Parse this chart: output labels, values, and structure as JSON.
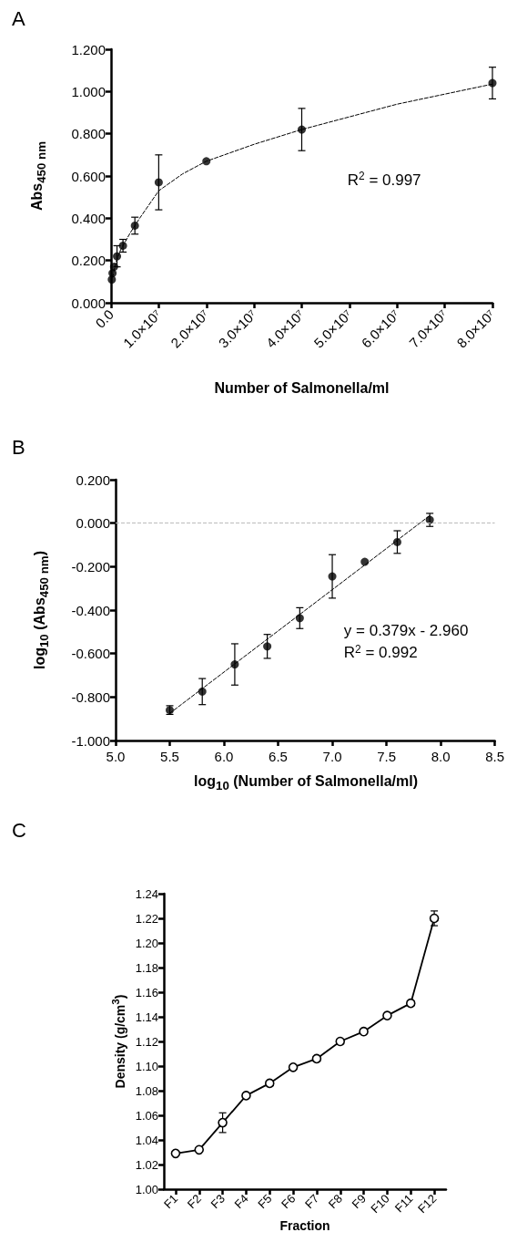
{
  "chart_data": [
    {
      "type": "scatter",
      "title": "A",
      "xlabel": "Number of Salmonella/ml",
      "ylabel": "Abs$_{450 nm}$",
      "xlim": [
        0,
        80000000
      ],
      "xticks": [
        {
          "value": 0,
          "label": "0.0"
        },
        {
          "value": 10000000,
          "label": "1.0×10⁷"
        },
        {
          "value": 20000000,
          "label": "2.0×10⁷"
        },
        {
          "value": 30000000,
          "label": "3.0×10⁷"
        },
        {
          "value": 40000000,
          "label": "4.0×10⁷"
        },
        {
          "value": 50000000,
          "label": "5.0×10⁷"
        },
        {
          "value": 60000000,
          "label": "6.0×10⁷"
        },
        {
          "value": 70000000,
          "label": "7.0×10⁷"
        },
        {
          "value": 80000000,
          "label": "8.0×10⁷"
        }
      ],
      "ylim": [
        0,
        1.2
      ],
      "yticks": [
        {
          "value": 0,
          "label": "0.000"
        },
        {
          "value": 0.2,
          "label": "0.200"
        },
        {
          "value": 0.4,
          "label": "0.400"
        },
        {
          "value": 0.6,
          "label": "0.600"
        },
        {
          "value": 0.8,
          "label": "0.800"
        },
        {
          "value": 1.0,
          "label": "1.000"
        },
        {
          "value": 1.2,
          "label": "1.200"
        }
      ],
      "grid": false,
      "marker": "circle",
      "annotations": [
        "R$^{2}$ = 0.997"
      ],
      "series": [
        {
          "color": "#000000",
          "x": [
            160000,
            310000,
            630000,
            1250000,
            2500000,
            5000000,
            10000000,
            20000000,
            40000000,
            80000000
          ],
          "values": [
            0.11,
            0.14,
            0.17,
            0.22,
            0.27,
            0.365,
            0.57,
            0.67,
            0.82,
            1.04
          ],
          "errors": [
            null,
            null,
            null,
            0.05,
            0.03,
            0.04,
            0.13,
            null,
            0.1,
            0.075
          ]
        },
        {
          "type": "line",
          "color": "#000000",
          "marker": "none",
          "line_style": "dashed",
          "x": [
            300000,
            1000000,
            2000000,
            4000000,
            6000000,
            10000000,
            15000000,
            20000000,
            30000000,
            40000000,
            60000000,
            80000000
          ],
          "values": [
            0.12,
            0.19,
            0.25,
            0.33,
            0.4,
            0.53,
            0.61,
            0.67,
            0.75,
            0.82,
            0.94,
            1.035
          ]
        }
      ]
    },
    {
      "type": "scatter",
      "title": "B",
      "xlabel": "log$_{10}$ (Number of Salmonella/ml)",
      "ylabel": "log$_{10}$ (Abs$_{450 nm}$)",
      "xlim": [
        5.0,
        8.5
      ],
      "xticks": [
        {
          "value": 5,
          "label": "5.0"
        },
        5.5,
        {
          "value": 6,
          "label": "6.0"
        },
        6.5,
        {
          "value": 7,
          "label": "7.0"
        },
        7.5,
        {
          "value": 8,
          "label": "8.0"
        },
        8.5
      ],
      "ylim": [
        -1.0,
        0.2
      ],
      "yticks": [
        {
          "value": -1,
          "label": "-1.000"
        },
        {
          "value": -0.8,
          "label": "-0.800"
        },
        {
          "value": -0.6,
          "label": "-0.600"
        },
        {
          "value": -0.4,
          "label": "-0.400"
        },
        {
          "value": -0.2,
          "label": "-0.200"
        },
        {
          "value": 0,
          "label": "0.000"
        },
        {
          "value": 0.2,
          "label": "0.200"
        }
      ],
      "grid": false,
      "marker": "circle",
      "ref_lines": [
        {
          "axis": "y",
          "value": 0,
          "color": "#bbbbbb",
          "line_style": "dashed"
        }
      ],
      "annotations": [
        "y = 0.379x - 2.960",
        "R$^{2}$ = 0.992"
      ],
      "series": [
        {
          "color": "#000000",
          "x": [
            5.5,
            5.8,
            6.1,
            6.4,
            6.7,
            7.0,
            7.3,
            7.6,
            7.9
          ],
          "values": [
            -0.86,
            -0.775,
            -0.65,
            -0.567,
            -0.437,
            -0.245,
            -0.178,
            -0.087,
            0.015
          ],
          "errors": [
            0.02,
            0.06,
            0.095,
            0.055,
            0.048,
            0.1,
            null,
            0.052,
            0.03
          ]
        },
        {
          "type": "line",
          "color": "#000000",
          "marker": "none",
          "line_style": "dashed",
          "x": [
            5.5,
            7.9
          ],
          "values": [
            -0.875,
            0.035
          ]
        }
      ]
    },
    {
      "type": "line",
      "title": "C",
      "xlabel": "Fraction",
      "ylabel": "Density (g/cm$^{3}$)",
      "categories": [
        "F1",
        "F2",
        "F3",
        "F4",
        "F5",
        "F6",
        "F7",
        "F8",
        "F9",
        "F10",
        "F11",
        "F12"
      ],
      "ylim": [
        1.0,
        1.24
      ],
      "yticks": [
        {
          "value": 1.0,
          "label": "1.00"
        },
        1.02,
        1.04,
        1.06,
        1.08,
        {
          "value": 1.1,
          "label": "1.10"
        },
        1.12,
        1.14,
        1.16,
        1.18,
        {
          "value": 1.2,
          "label": "1.20"
        },
        1.22,
        1.24
      ],
      "grid": false,
      "marker": "circle",
      "line_style": "solid",
      "series": [
        {
          "color": "#000000",
          "values": [
            1.029,
            1.032,
            1.054,
            1.076,
            1.086,
            1.099,
            1.106,
            1.12,
            1.128,
            1.141,
            1.151,
            1.22
          ],
          "errors": [
            null,
            null,
            0.008,
            null,
            null,
            null,
            null,
            0.002,
            null,
            null,
            0.002,
            0.006
          ]
        }
      ]
    }
  ]
}
